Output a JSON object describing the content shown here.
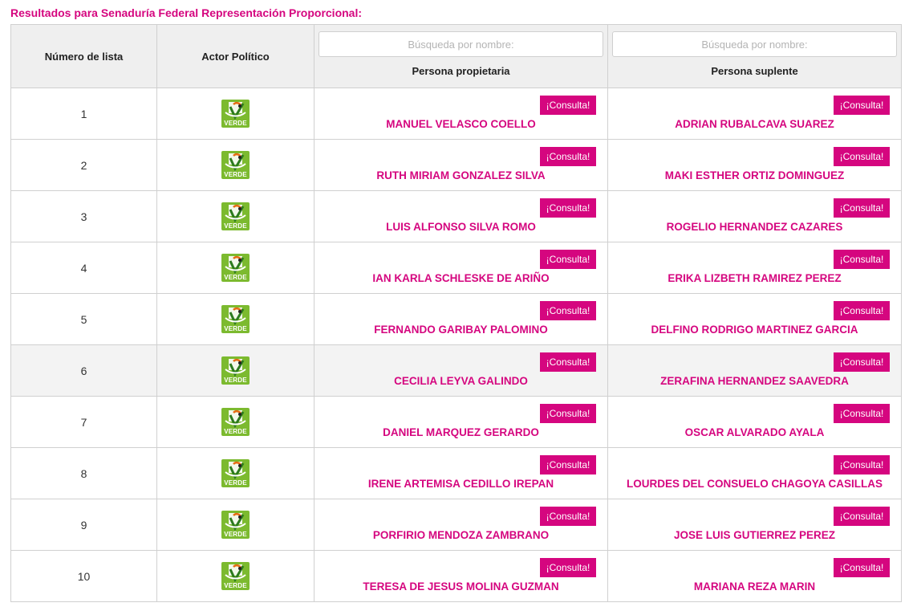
{
  "page": {
    "title": "Resultados para Senaduría Federal Representación Proporcional:",
    "accent_color": "#d5067f"
  },
  "table": {
    "headers": {
      "number": "Número de lista",
      "actor": "Actor Político",
      "owner": "Persona propietaria",
      "substitute": "Persona suplente"
    },
    "search_placeholder_owner": "Búsqueda por nombre:",
    "search_placeholder_substitute": "Búsqueda por nombre:",
    "consult_label": "¡Consulta!",
    "party_logo": {
      "icon": "verde-party-logo-icon",
      "text": "VERDE",
      "color": "#7cba2f"
    },
    "rows": [
      {
        "number": "1",
        "owner": "MANUEL VELASCO COELLO",
        "substitute": "ADRIAN RUBALCAVA SUAREZ"
      },
      {
        "number": "2",
        "owner": "RUTH MIRIAM GONZALEZ SILVA",
        "substitute": "MAKI ESTHER ORTIZ DOMINGUEZ"
      },
      {
        "number": "3",
        "owner": "LUIS ALFONSO SILVA ROMO",
        "substitute": "ROGELIO HERNANDEZ CAZARES"
      },
      {
        "number": "4",
        "owner": "IAN KARLA SCHLESKE DE ARIÑO",
        "substitute": "ERIKA LIZBETH RAMIREZ PEREZ"
      },
      {
        "number": "5",
        "owner": "FERNANDO GARIBAY PALOMINO",
        "substitute": "DELFINO RODRIGO MARTINEZ GARCIA"
      },
      {
        "number": "6",
        "owner": "CECILIA LEYVA GALINDO",
        "substitute": "ZERAFINA HERNANDEZ SAAVEDRA"
      },
      {
        "number": "7",
        "owner": "DANIEL MARQUEZ GERARDO",
        "substitute": "OSCAR ALVARADO AYALA"
      },
      {
        "number": "8",
        "owner": "IRENE ARTEMISA CEDILLO IREPAN",
        "substitute": "LOURDES DEL CONSUELO CHAGOYA CASILLAS"
      },
      {
        "number": "9",
        "owner": "PORFIRIO MENDOZA ZAMBRANO",
        "substitute": "JOSE LUIS GUTIERREZ PEREZ"
      },
      {
        "number": "10",
        "owner": "TERESA DE JESUS MOLINA GUZMAN",
        "substitute": "MARIANA REZA MARIN"
      }
    ]
  }
}
